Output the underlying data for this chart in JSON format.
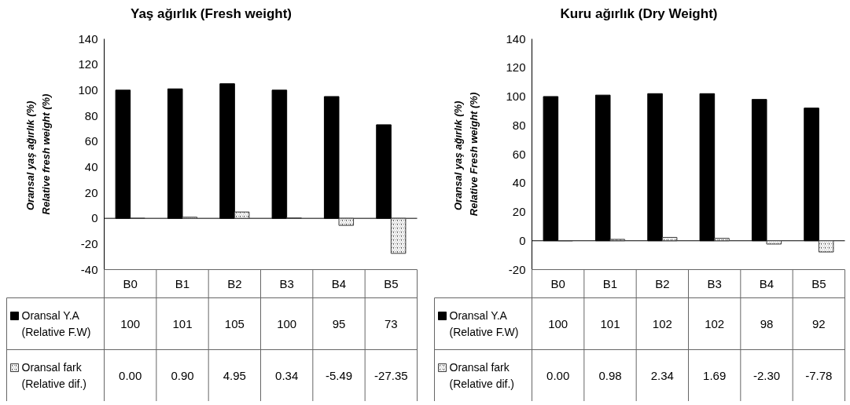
{
  "chart_data": [
    {
      "type": "bar",
      "title": "Yaş ağırlık (Fresh weight)",
      "ylabel": "Oransal yaş ağırlık  (%)\nRelative fresh weight (%)",
      "categories": [
        "B0",
        "B1",
        "B2",
        "B3",
        "B4",
        "B5"
      ],
      "series": [
        {
          "name": "Oransal Y.A (Relative F.W)",
          "color": "#000000",
          "values": [
            100,
            101,
            105,
            100,
            95,
            73
          ],
          "value_labels": [
            "100",
            "101",
            "105",
            "100",
            "95",
            "73"
          ]
        },
        {
          "name": "Oransal fark (Relative dif.)",
          "color": "#404040",
          "values": [
            0.0,
            0.9,
            4.95,
            0.34,
            -5.49,
            -27.35
          ],
          "value_labels": [
            "0.00",
            "0.90",
            "4.95",
            "0.34",
            "-5.49",
            "-27.35"
          ]
        }
      ],
      "ylim": [
        -40,
        140
      ],
      "yticks": [
        -40,
        -20,
        0,
        20,
        40,
        60,
        80,
        100,
        120,
        140
      ],
      "grid": false,
      "legend": "bottom left",
      "ref_lines": [
        {
          "axis": "y",
          "value": 0,
          "color": "#000000"
        }
      ]
    },
    {
      "type": "bar",
      "title": "Kuru ağırlık (Dry Weight)",
      "ylabel": "Oransal yaş ağırlık  (%)\nRelative Fresh weight (%)",
      "categories": [
        "B0",
        "B1",
        "B2",
        "B3",
        "B4",
        "B5"
      ],
      "series": [
        {
          "name": "Oransal Y.A (Relative F.W)",
          "color": "#000000",
          "values": [
            100,
            101,
            102,
            102,
            98,
            92
          ],
          "value_labels": [
            "100",
            "101",
            "102",
            "102",
            "98",
            "92"
          ]
        },
        {
          "name": "Oransal fark (Relative dif.)",
          "color": "#404040",
          "values": [
            0.0,
            0.98,
            2.34,
            1.69,
            -2.3,
            -7.78
          ],
          "value_labels": [
            "0.00",
            "0.98",
            "2.34",
            "1.69",
            "-2.30",
            "-7.78"
          ]
        }
      ],
      "ylim": [
        -20,
        140
      ],
      "yticks": [
        -20,
        0,
        20,
        40,
        60,
        80,
        100,
        120,
        140
      ],
      "grid": false,
      "legend": "bottom left",
      "ref_lines": [
        {
          "axis": "y",
          "value": 0,
          "color": "#000000"
        }
      ]
    }
  ]
}
